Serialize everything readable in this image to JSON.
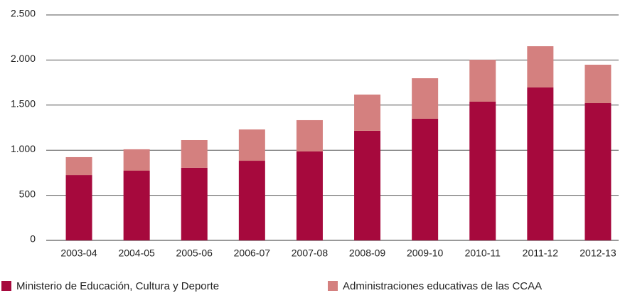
{
  "chart_data": {
    "type": "stacked_bar",
    "categories": [
      "2003-04",
      "2004-05",
      "2005-06",
      "2006-07",
      "2007-08",
      "2008-09",
      "2009-10",
      "2010-11",
      "2011-12",
      "2012-13"
    ],
    "series": [
      {
        "name": "Ministerio de Educación, Cultura y Deporte",
        "color": "#a6093d",
        "values": [
          725,
          773,
          805,
          883,
          986,
          1215,
          1349,
          1538,
          1696,
          1522
        ]
      },
      {
        "name": "Administraciones educativas de las CCAA",
        "color": "#d4807f",
        "values": [
          198,
          237,
          307,
          347,
          347,
          402,
          449,
          465,
          457,
          426
        ]
      }
    ],
    "ylim": [
      0,
      2500
    ],
    "yticks": [
      0,
      500,
      {
        "value": 1000,
        "label": "1.000"
      },
      {
        "value": 1500,
        "label": "1.500"
      },
      {
        "value": 2000,
        "label": "2.000"
      },
      {
        "value": 2500,
        "label": "2.500"
      }
    ],
    "grid": true
  }
}
